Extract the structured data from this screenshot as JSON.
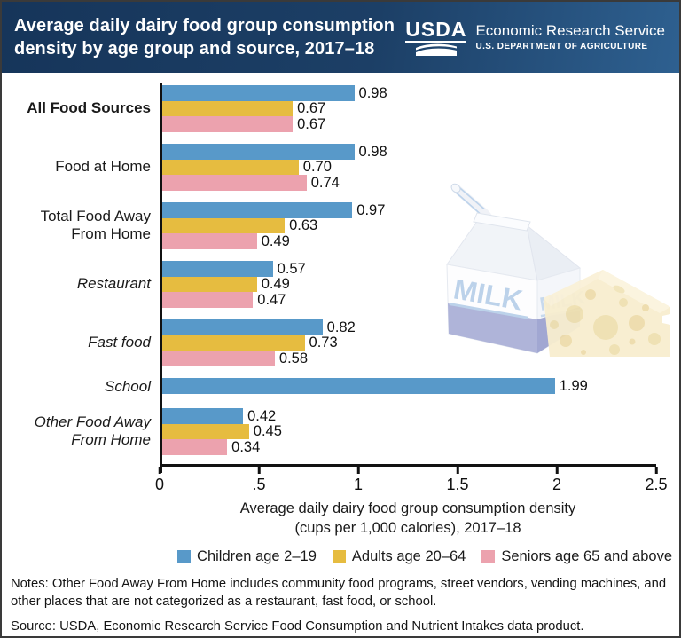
{
  "header": {
    "title_lines": [
      "Average daily dairy food group consumption",
      "density by age group and source, 2017–18"
    ],
    "logo": {
      "acronym": "USDA",
      "agency": "Economic Research Service",
      "department": "U.S. DEPARTMENT OF AGRICULTURE"
    },
    "background_color": "#1b3c61"
  },
  "chart_data": {
    "type": "bar",
    "orientation": "horizontal",
    "title": "Average daily dairy food group consumption density by age group and source, 2017–18",
    "categories": [
      "All Food Sources",
      "Food at Home",
      "Total Food Away From Home",
      "Restaurant",
      "Fast food",
      "School",
      "Other Food Away From Home"
    ],
    "category_display": [
      {
        "lines": [
          "All Food Sources"
        ],
        "bold": true,
        "italic": false
      },
      {
        "lines": [
          "Food at Home"
        ],
        "bold": false,
        "italic": false
      },
      {
        "lines": [
          "Total Food Away",
          "From Home"
        ],
        "bold": false,
        "italic": false
      },
      {
        "lines": [
          "Restaurant"
        ],
        "bold": false,
        "italic": true
      },
      {
        "lines": [
          "Fast food"
        ],
        "bold": false,
        "italic": true
      },
      {
        "lines": [
          "School"
        ],
        "bold": false,
        "italic": true
      },
      {
        "lines": [
          "Other Food Away",
          "From Home"
        ],
        "bold": false,
        "italic": true
      }
    ],
    "series": [
      {
        "key": "children",
        "name": "Children age 2–19",
        "color": "#5899c9",
        "values": [
          0.98,
          0.98,
          0.97,
          0.57,
          0.82,
          1.99,
          0.42
        ]
      },
      {
        "key": "adults",
        "name": "Adults age 20–64",
        "color": "#e6bc40",
        "values": [
          0.67,
          0.7,
          0.63,
          0.49,
          0.73,
          null,
          0.45
        ]
      },
      {
        "key": "seniors",
        "name": "Seniors age 65 and above",
        "color": "#eca2ae",
        "values": [
          0.67,
          0.74,
          0.49,
          0.47,
          0.58,
          null,
          0.34
        ]
      }
    ],
    "xlim": [
      0,
      2.5
    ],
    "xticks": [
      0,
      0.5,
      1,
      1.5,
      2,
      2.5
    ],
    "xtick_labels": [
      "0",
      ".5",
      "1",
      "1.5",
      "2",
      "2.5"
    ],
    "xlabel_lines": [
      "Average daily dairy food group consumption density",
      "(cups per 1,000 calories), 2017–18"
    ],
    "value_labels": true,
    "grid": false,
    "legend_position": "bottom"
  },
  "illustration": {
    "carton_label_front": "MILK",
    "carton_label_side": "MILK"
  },
  "footer": {
    "notes": "Notes:  Other Food Away From Home includes community food programs, street vendors, vending machines, and other places that are not categorized as a restaurant, fast food, or school.",
    "source": "Source: USDA, Economic Research Service Food Consumption and Nutrient Intakes data product."
  }
}
